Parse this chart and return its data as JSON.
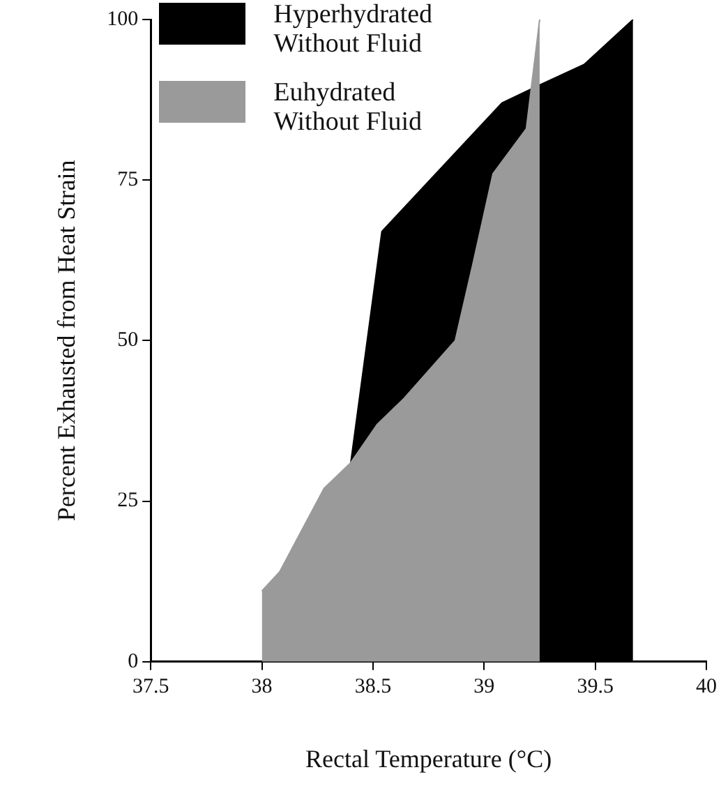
{
  "chart_data": {
    "type": "area",
    "xlabel": "Rectal Temperature (°C)",
    "ylabel": "Percent Exhausted from Heat Strain",
    "xlim": [
      37.5,
      40
    ],
    "xticks": [
      37.5,
      38,
      38.5,
      39,
      39.5,
      40
    ],
    "ylim": [
      0,
      100
    ],
    "yticks": [
      0,
      25,
      50,
      75,
      100
    ],
    "grid": false,
    "legend": "top left",
    "series": [
      {
        "name": "Hyperhydrated Without Fluid",
        "color": "#000000",
        "x": [
          38.4,
          38.54,
          39.08,
          39.2,
          39.45,
          39.67
        ],
        "values": [
          31,
          67,
          87,
          89,
          93,
          100
        ]
      },
      {
        "name": "Euhydrated Without Fluid",
        "color": "#9a9a9a",
        "x": [
          38.0,
          38.08,
          38.28,
          38.4,
          38.52,
          38.64,
          38.87,
          38.95,
          39.04,
          39.19,
          39.25
        ],
        "values": [
          11,
          14,
          27,
          31,
          37,
          41,
          50,
          62,
          76,
          83,
          100
        ]
      }
    ]
  }
}
